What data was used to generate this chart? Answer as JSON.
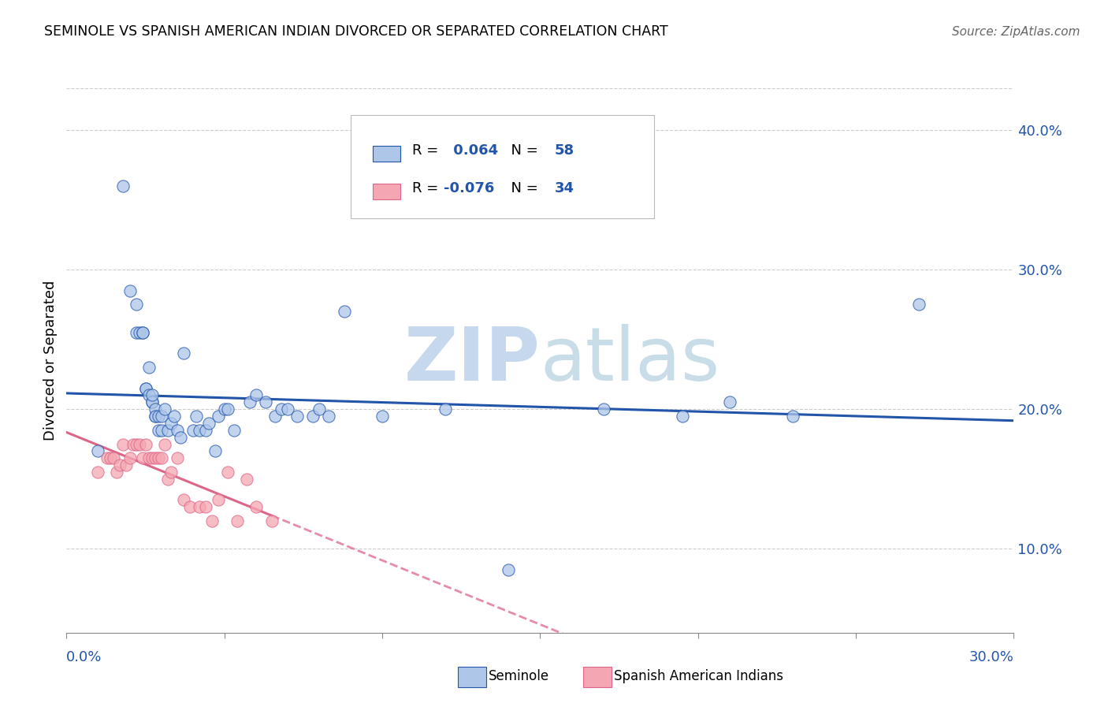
{
  "title": "SEMINOLE VS SPANISH AMERICAN INDIAN DIVORCED OR SEPARATED CORRELATION CHART",
  "source": "Source: ZipAtlas.com",
  "ylabel": "Divorced or Separated",
  "xlim": [
    0.0,
    0.3
  ],
  "ylim": [
    0.04,
    0.43
  ],
  "yticks": [
    0.1,
    0.2,
    0.3,
    0.4
  ],
  "ytick_labels": [
    "10.0%",
    "20.0%",
    "30.0%",
    "40.0%"
  ],
  "seminole_R": 0.064,
  "seminole_N": 58,
  "spanish_R": -0.076,
  "spanish_N": 34,
  "blue_color": "#aec6e8",
  "pink_color": "#f4a7b2",
  "trend_blue": "#2255aa",
  "trend_pink": "#dd6688",
  "seminole_x": [
    0.01,
    0.018,
    0.02,
    0.022,
    0.022,
    0.023,
    0.024,
    0.024,
    0.025,
    0.025,
    0.026,
    0.026,
    0.027,
    0.027,
    0.027,
    0.028,
    0.028,
    0.028,
    0.029,
    0.029,
    0.03,
    0.03,
    0.031,
    0.032,
    0.033,
    0.034,
    0.035,
    0.036,
    0.037,
    0.04,
    0.041,
    0.042,
    0.044,
    0.045,
    0.047,
    0.048,
    0.05,
    0.051,
    0.053,
    0.058,
    0.06,
    0.063,
    0.066,
    0.068,
    0.07,
    0.073,
    0.078,
    0.08,
    0.083,
    0.088,
    0.1,
    0.12,
    0.14,
    0.17,
    0.195,
    0.21,
    0.23,
    0.27
  ],
  "seminole_y": [
    0.17,
    0.36,
    0.285,
    0.275,
    0.255,
    0.255,
    0.255,
    0.255,
    0.215,
    0.215,
    0.23,
    0.21,
    0.205,
    0.205,
    0.21,
    0.195,
    0.2,
    0.195,
    0.185,
    0.195,
    0.185,
    0.195,
    0.2,
    0.185,
    0.19,
    0.195,
    0.185,
    0.18,
    0.24,
    0.185,
    0.195,
    0.185,
    0.185,
    0.19,
    0.17,
    0.195,
    0.2,
    0.2,
    0.185,
    0.205,
    0.21,
    0.205,
    0.195,
    0.2,
    0.2,
    0.195,
    0.195,
    0.2,
    0.195,
    0.27,
    0.195,
    0.2,
    0.085,
    0.2,
    0.195,
    0.205,
    0.195,
    0.275
  ],
  "spanish_x": [
    0.01,
    0.013,
    0.014,
    0.015,
    0.016,
    0.017,
    0.018,
    0.019,
    0.02,
    0.021,
    0.022,
    0.023,
    0.024,
    0.025,
    0.026,
    0.027,
    0.028,
    0.029,
    0.03,
    0.031,
    0.032,
    0.033,
    0.035,
    0.037,
    0.039,
    0.042,
    0.044,
    0.046,
    0.048,
    0.051,
    0.054,
    0.057,
    0.06,
    0.065
  ],
  "spanish_y": [
    0.155,
    0.165,
    0.165,
    0.165,
    0.155,
    0.16,
    0.175,
    0.16,
    0.165,
    0.175,
    0.175,
    0.175,
    0.165,
    0.175,
    0.165,
    0.165,
    0.165,
    0.165,
    0.165,
    0.175,
    0.15,
    0.155,
    0.165,
    0.135,
    0.13,
    0.13,
    0.13,
    0.12,
    0.135,
    0.155,
    0.12,
    0.15,
    0.13,
    0.12
  ],
  "watermark_zip_color": "#c8d8ee",
  "watermark_atlas_color": "#d0e0e8"
}
